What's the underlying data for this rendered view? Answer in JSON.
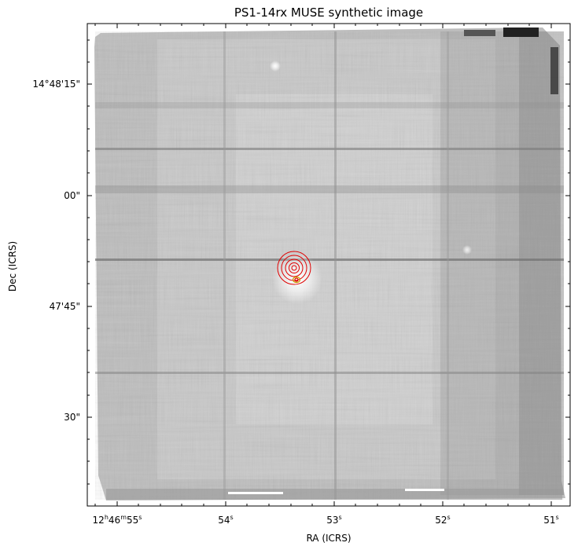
{
  "figure": {
    "title": "PS1-14rx MUSE synthetic image",
    "xlabel": "RA (ICRS)",
    "ylabel": "Dec (ICRS)",
    "ra_ticks": [
      {
        "h": "12",
        "m": "46",
        "s": "55",
        "full": true
      },
      {
        "s": "54"
      },
      {
        "s": "53"
      },
      {
        "s": "52"
      },
      {
        "s": "51"
      }
    ],
    "dec_ticks": [
      "14°48'15\"",
      "00\"",
      "47'45\"",
      "30\""
    ],
    "colormap": "greyscale",
    "marker_color": "#e00000",
    "host_marker_color": "#c8a000"
  }
}
